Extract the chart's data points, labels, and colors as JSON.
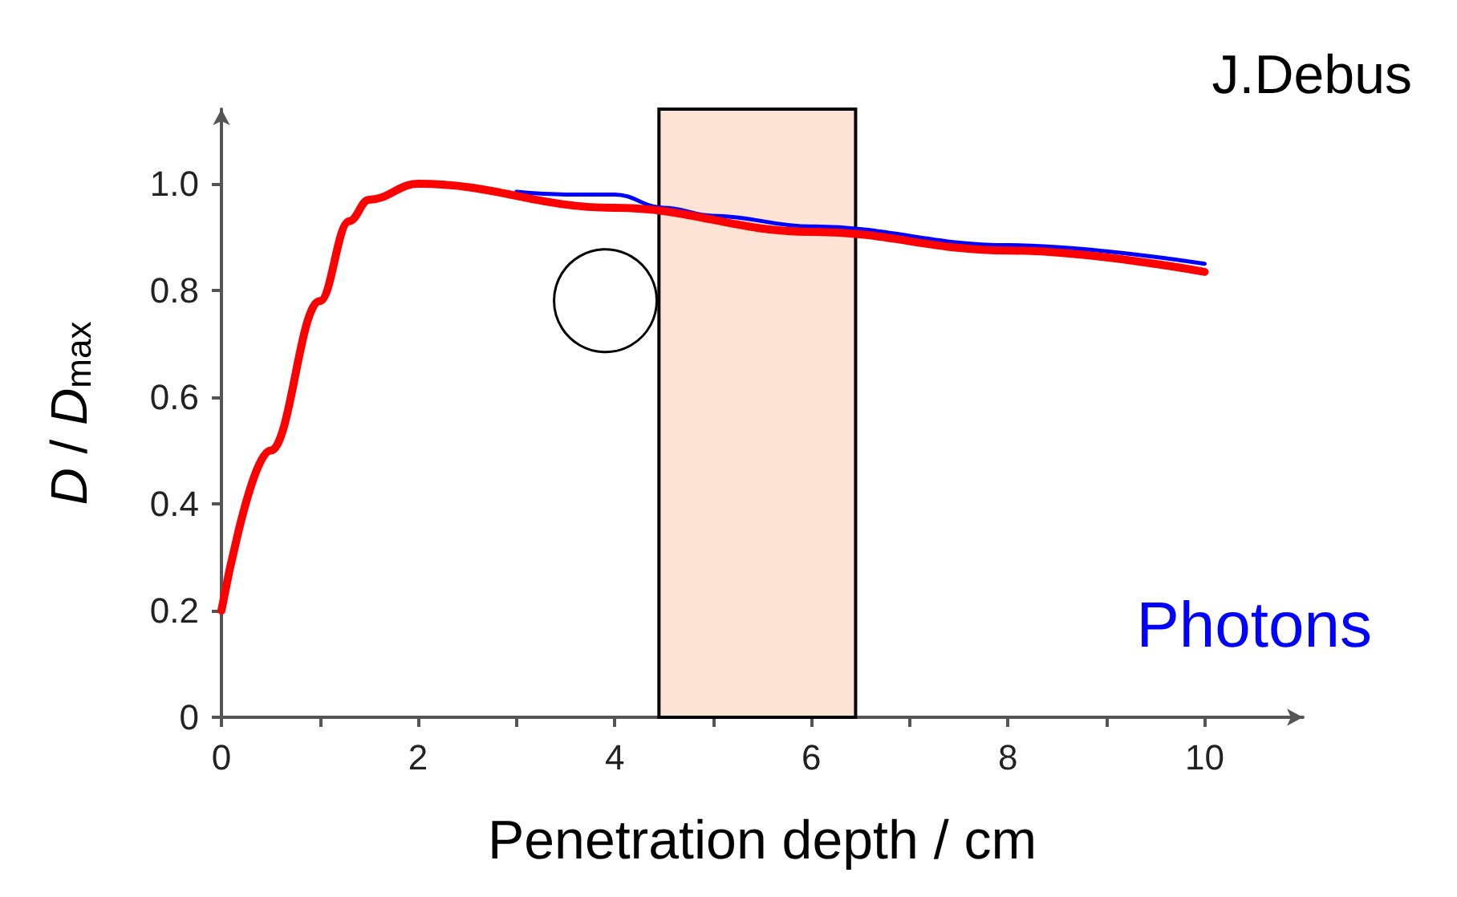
{
  "chart_data": {
    "type": "line",
    "xlabel": "Penetration depth / cm",
    "ylabel": "D / D$_{max}$",
    "annotations": [
      "J.Debus"
    ],
    "series": [
      {
        "name": "Photons",
        "color": "#0000ff",
        "x": [
          3,
          3.5,
          4,
          4.5,
          5,
          6,
          8,
          10
        ],
        "values": [
          0.985,
          0.98,
          0.98,
          0.955,
          0.94,
          0.92,
          0.885,
          0.85
        ]
      },
      {
        "color": "#ff0000",
        "x": [
          0,
          0.5,
          1,
          1.3,
          1.5,
          2,
          4,
          6,
          8,
          10
        ],
        "values": [
          0.2,
          0.5,
          0.78,
          0.93,
          0.97,
          1.0,
          0.955,
          0.91,
          0.875,
          0.835
        ]
      }
    ],
    "bands": [
      {
        "axis": "x",
        "from": 4.45,
        "to": 6.45,
        "color": "#fde3d6"
      }
    ],
    "xlim": [
      0,
      11
    ],
    "ylim": [
      0,
      1.14
    ],
    "xticks": [
      0,
      {
        "value": 1,
        "label": null
      },
      2,
      {
        "value": 3,
        "label": null
      },
      4,
      {
        "value": 5,
        "label": null
      },
      6,
      {
        "value": 7,
        "label": null
      },
      8,
      {
        "value": 9,
        "label": null
      },
      10
    ],
    "yticks": [
      0,
      0.2,
      0.4,
      0.6,
      0.8,
      {
        "value": 1,
        "label": "1.0"
      }
    ],
    "grid": false,
    "legend": false,
    "marker": "none",
    "line_style": "solid"
  }
}
